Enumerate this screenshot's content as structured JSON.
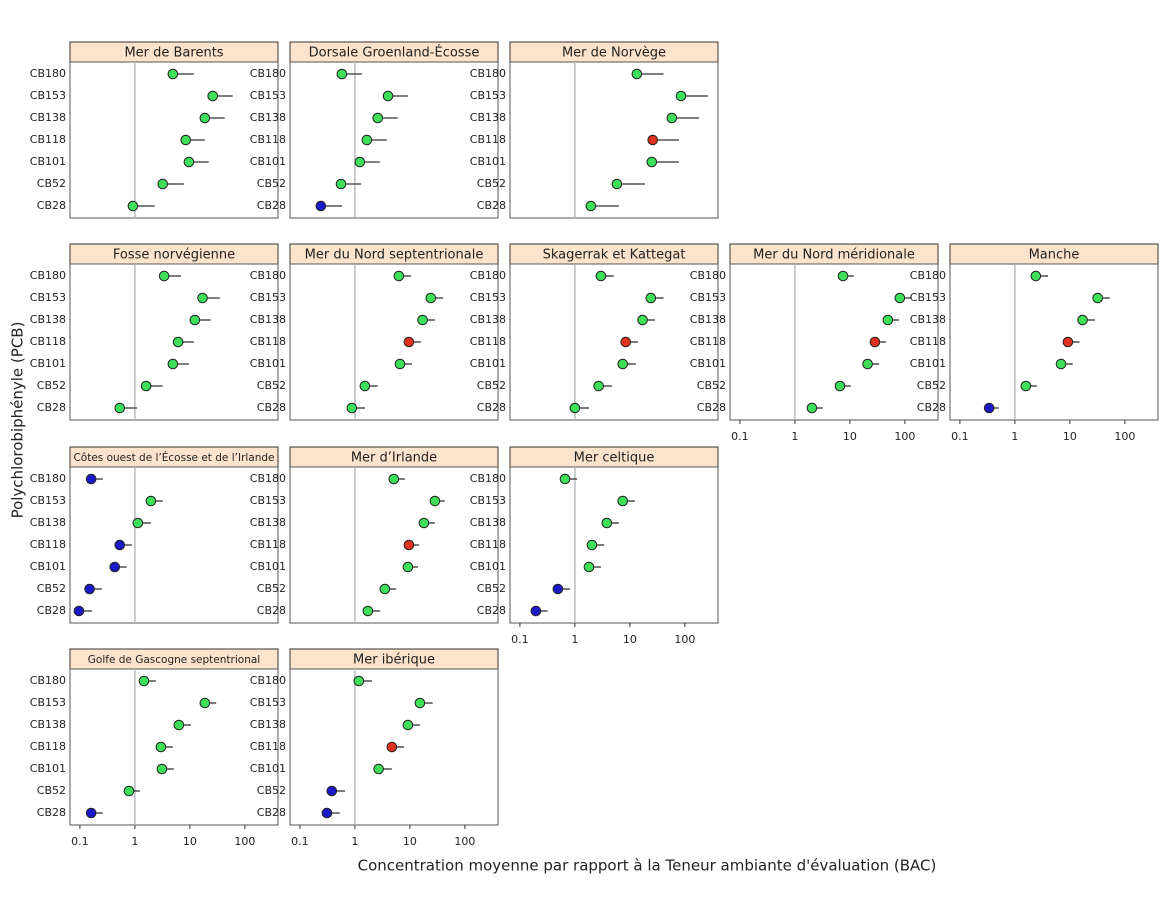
{
  "x_label": "Concentration moyenne par rapport à la Teneur ambiante d'évaluation (BAC)",
  "y_label": "Polychlorobiphényle (PCB)",
  "chart_data": [
    {
      "type": "dot",
      "title": "Mer de Barents",
      "categories": [
        "CB180",
        "CB153",
        "CB138",
        "CB118",
        "CB101",
        "CB52",
        "CB28"
      ],
      "values": [
        4.9,
        26,
        18.7,
        8.4,
        9.6,
        3.2,
        0.92
      ],
      "upper": [
        11.8,
        60,
        43,
        18.7,
        22,
        7.8,
        2.3
      ],
      "colors": [
        "#3ee05a",
        "#3ee05a",
        "#3ee05a",
        "#3ee05a",
        "#3ee05a",
        "#3ee05a",
        "#3ee05a"
      ],
      "xlim": [
        0.066,
        400
      ],
      "log": true,
      "reference": 1
    },
    {
      "type": "dot",
      "title": "Dorsale Groenland-Écosse",
      "categories": [
        "CB180",
        "CB153",
        "CB138",
        "CB118",
        "CB101",
        "CB52",
        "CB28"
      ],
      "values": [
        0.58,
        4.0,
        2.6,
        1.65,
        1.23,
        0.56,
        0.24
      ],
      "upper": [
        1.34,
        9.2,
        6.0,
        3.8,
        2.85,
        1.29,
        0.58
      ],
      "colors": [
        "#3ee05a",
        "#3ee05a",
        "#3ee05a",
        "#3ee05a",
        "#3ee05a",
        "#3ee05a",
        "#1a1ac8"
      ],
      "xlim": [
        0.066,
        400
      ],
      "log": true,
      "reference": 1
    },
    {
      "type": "dot",
      "title": "Mer de Norvège",
      "categories": [
        "CB180",
        "CB153",
        "CB138",
        "CB118",
        "CB101",
        "CB52",
        "CB28"
      ],
      "values": [
        13.4,
        85,
        58,
        26,
        25,
        5.8,
        1.95
      ],
      "upper": [
        41,
        262,
        180,
        78,
        78,
        18.7,
        6.3
      ],
      "colors": [
        "#3ee05a",
        "#3ee05a",
        "#3ee05a",
        "#e0321e",
        "#3ee05a",
        "#3ee05a",
        "#3ee05a"
      ],
      "xlim": [
        0.066,
        400
      ],
      "log": true,
      "reference": 1
    },
    {
      "type": "dot",
      "title": "Fosse norvégienne",
      "categories": [
        "CB180",
        "CB153",
        "CB138",
        "CB118",
        "CB101",
        "CB52",
        "CB28"
      ],
      "values": [
        3.4,
        17,
        12.3,
        6.1,
        4.9,
        1.6,
        0.53
      ],
      "upper": [
        6.9,
        35,
        24,
        11.8,
        9.6,
        3.2,
        1.09
      ],
      "colors": [
        "#3ee05a",
        "#3ee05a",
        "#3ee05a",
        "#3ee05a",
        "#3ee05a",
        "#3ee05a",
        "#3ee05a"
      ],
      "xlim": [
        0.066,
        400
      ],
      "log": true,
      "reference": 1
    },
    {
      "type": "dot",
      "title": "Mer du Nord septentrionale",
      "categories": [
        "CB180",
        "CB153",
        "CB138",
        "CB118",
        "CB101",
        "CB52",
        "CB28"
      ],
      "values": [
        6.3,
        24,
        17,
        9.6,
        6.6,
        1.52,
        0.88
      ],
      "upper": [
        10.4,
        40,
        28.5,
        15.8,
        10.9,
        2.6,
        1.52
      ],
      "colors": [
        "#3ee05a",
        "#3ee05a",
        "#3ee05a",
        "#e0321e",
        "#3ee05a",
        "#3ee05a",
        "#3ee05a"
      ],
      "xlim": [
        0.066,
        400
      ],
      "log": true,
      "reference": 1
    },
    {
      "type": "dot",
      "title": "Skagerrak et Kattegat",
      "categories": [
        "CB180",
        "CB153",
        "CB138",
        "CB118",
        "CB101",
        "CB52",
        "CB28"
      ],
      "values": [
        2.97,
        24,
        17,
        8.4,
        7.4,
        2.7,
        1.0
      ],
      "upper": [
        5.1,
        41,
        28.5,
        14,
        12.8,
        4.7,
        1.8
      ],
      "colors": [
        "#3ee05a",
        "#3ee05a",
        "#3ee05a",
        "#e0321e",
        "#3ee05a",
        "#3ee05a",
        "#3ee05a"
      ],
      "xlim": [
        0.066,
        400
      ],
      "log": true,
      "reference": 1
    },
    {
      "type": "dot",
      "title": "Mer du Nord méridionale",
      "categories": [
        "CB180",
        "CB153",
        "CB138",
        "CB118",
        "CB101",
        "CB52",
        "CB28"
      ],
      "values": [
        7.5,
        81,
        49,
        28.5,
        21,
        6.6,
        2.04
      ],
      "upper": [
        11.8,
        129,
        78,
        45,
        34,
        10.4,
        3.2
      ],
      "colors": [
        "#3ee05a",
        "#3ee05a",
        "#3ee05a",
        "#e0321e",
        "#3ee05a",
        "#3ee05a",
        "#3ee05a"
      ],
      "xlim": [
        0.066,
        400
      ],
      "xticks": [
        0.1,
        1,
        10,
        100
      ],
      "log": true,
      "reference": 1
    },
    {
      "type": "dot",
      "title": "Manche",
      "categories": [
        "CB180",
        "CB153",
        "CB138",
        "CB118",
        "CB101",
        "CB52",
        "CB28"
      ],
      "values": [
        2.4,
        32,
        17,
        9.2,
        6.9,
        1.58,
        0.34
      ],
      "upper": [
        4.0,
        53,
        28.5,
        15,
        11.3,
        2.5,
        0.51
      ],
      "colors": [
        "#3ee05a",
        "#3ee05a",
        "#3ee05a",
        "#e0321e",
        "#3ee05a",
        "#3ee05a",
        "#1a1ac8"
      ],
      "xlim": [
        0.066,
        400
      ],
      "xticks": [
        0.1,
        1,
        10,
        100
      ],
      "log": true,
      "reference": 1
    },
    {
      "type": "dot",
      "title": "Côtes ouest de l’Écosse et de l’Irlande",
      "categories": [
        "CB180",
        "CB153",
        "CB138",
        "CB118",
        "CB101",
        "CB52",
        "CB28"
      ],
      "values": [
        0.16,
        1.95,
        1.13,
        0.53,
        0.43,
        0.15,
        0.096
      ],
      "upper": [
        0.26,
        3.2,
        1.95,
        0.88,
        0.71,
        0.25,
        0.165
      ],
      "colors": [
        "#1a1ac8",
        "#3ee05a",
        "#3ee05a",
        "#1a1ac8",
        "#1a1ac8",
        "#1a1ac8",
        "#1a1ac8"
      ],
      "xlim": [
        0.066,
        400
      ],
      "log": true,
      "reference": 1
    },
    {
      "type": "dot",
      "title": "Mer d’Irlande",
      "categories": [
        "CB180",
        "CB153",
        "CB138",
        "CB118",
        "CB101",
        "CB52",
        "CB28"
      ],
      "values": [
        5.1,
        28.5,
        18,
        9.6,
        9.2,
        3.5,
        1.72
      ],
      "upper": [
        8.1,
        43,
        28.5,
        14.7,
        14,
        5.6,
        2.85
      ],
      "colors": [
        "#3ee05a",
        "#3ee05a",
        "#3ee05a",
        "#e0321e",
        "#3ee05a",
        "#3ee05a",
        "#3ee05a"
      ],
      "xlim": [
        0.066,
        400
      ],
      "log": true,
      "reference": 1
    },
    {
      "type": "dot",
      "title": "Mer celtique",
      "categories": [
        "CB180",
        "CB153",
        "CB138",
        "CB118",
        "CB101",
        "CB52",
        "CB28"
      ],
      "values": [
        0.66,
        7.4,
        3.8,
        2.04,
        1.8,
        0.49,
        0.195
      ],
      "upper": [
        1.09,
        12.3,
        6.3,
        3.4,
        2.97,
        0.81,
        0.32
      ],
      "colors": [
        "#3ee05a",
        "#3ee05a",
        "#3ee05a",
        "#3ee05a",
        "#3ee05a",
        "#1a1ac8",
        "#1a1ac8"
      ],
      "xlim": [
        0.066,
        400
      ],
      "xticks": [
        0.1,
        1,
        10,
        100
      ],
      "log": true,
      "reference": 1
    },
    {
      "type": "dot",
      "title": "Golfe de Gascogne septentrional",
      "categories": [
        "CB180",
        "CB153",
        "CB138",
        "CB118",
        "CB101",
        "CB52",
        "CB28"
      ],
      "values": [
        1.46,
        18.7,
        6.3,
        2.97,
        3.1,
        0.78,
        0.16
      ],
      "upper": [
        2.4,
        30,
        10.4,
        4.9,
        5.1,
        1.23,
        0.26
      ],
      "colors": [
        "#3ee05a",
        "#3ee05a",
        "#3ee05a",
        "#3ee05a",
        "#3ee05a",
        "#3ee05a",
        "#1a1ac8"
      ],
      "xlim": [
        0.066,
        400
      ],
      "xticks": [
        0.1,
        1,
        10,
        100
      ],
      "log": true,
      "reference": 1
    },
    {
      "type": "dot",
      "title": "Mer ibérique",
      "categories": [
        "CB180",
        "CB153",
        "CB138",
        "CB118",
        "CB101",
        "CB52",
        "CB28"
      ],
      "values": [
        1.18,
        15.2,
        9.2,
        4.7,
        2.7,
        0.38,
        0.31
      ],
      "upper": [
        2.04,
        26,
        15.2,
        7.8,
        4.7,
        0.66,
        0.53
      ],
      "colors": [
        "#3ee05a",
        "#3ee05a",
        "#3ee05a",
        "#e0321e",
        "#3ee05a",
        "#1a1ac8",
        "#1a1ac8"
      ],
      "xlim": [
        0.066,
        400
      ],
      "xticks": [
        0.1,
        1,
        10,
        100
      ],
      "log": true,
      "reference": 1
    }
  ]
}
